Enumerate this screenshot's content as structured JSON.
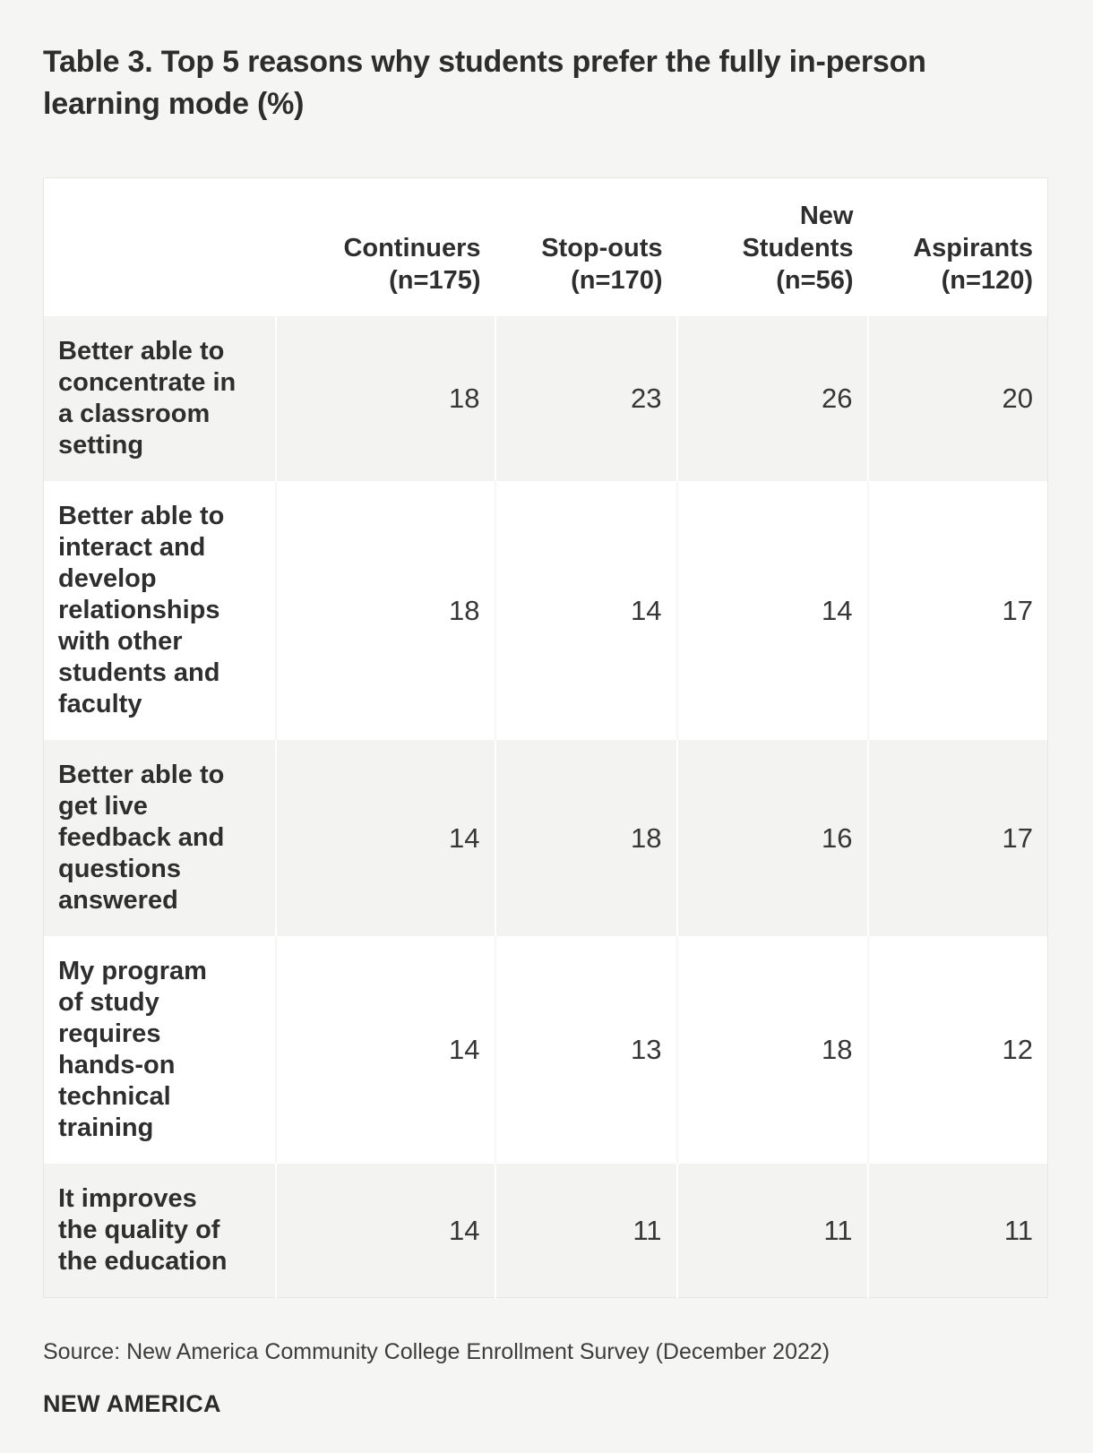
{
  "title": "Table 3. Top 5 reasons why students prefer the fully in-person\nlearning mode (%)",
  "table": {
    "corner_label": "",
    "columns": [
      {
        "label": "Continuers\n(n=175)"
      },
      {
        "label": "Stop-outs\n(n=170)"
      },
      {
        "label": "New\nStudents\n(n=56)"
      },
      {
        "label": "Aspirants\n(n=120)"
      }
    ],
    "rows": [
      {
        "label": "Better able to\nconcentrate in\na classroom\nsetting",
        "values": [
          "18",
          "23",
          "26",
          "20"
        ]
      },
      {
        "label": "Better able to\ninteract and\ndevelop\nrelationships\nwith other\nstudents and\nfaculty",
        "values": [
          "18",
          "14",
          "14",
          "17"
        ]
      },
      {
        "label": "Better able to\nget live\nfeedback and\nquestions\nanswered",
        "values": [
          "14",
          "18",
          "16",
          "17"
        ]
      },
      {
        "label": "My program\nof study\nrequires\nhands-on\ntechnical\ntraining",
        "values": [
          "14",
          "13",
          "18",
          "12"
        ]
      },
      {
        "label": "It improves\nthe quality of\nthe education",
        "values": [
          "14",
          "11",
          "11",
          "11"
        ]
      }
    ]
  },
  "source": "Source: New America Community College Enrollment Survey (December 2022)",
  "logo": "NEW AMERICA",
  "colors": {
    "page_background": "#f5f5f3",
    "table_background": "#ffffff",
    "alt_row_background": "#f3f3f1",
    "table_border": "#e6e6e3",
    "text": "#2e2e2e"
  },
  "chart_data": {
    "type": "table",
    "title": "Table 3. Top 5 reasons why students prefer the fully in-person learning mode (%)",
    "columns": [
      "Continuers (n=175)",
      "Stop-outs (n=170)",
      "New Students (n=56)",
      "Aspirants (n=120)"
    ],
    "rows": [
      {
        "label": "Better able to concentrate in a classroom setting",
        "values": [
          18,
          23,
          26,
          20
        ]
      },
      {
        "label": "Better able to interact and develop relationships with other students and faculty",
        "values": [
          18,
          14,
          14,
          17
        ]
      },
      {
        "label": "Better able to get live feedback and questions answered",
        "values": [
          14,
          18,
          16,
          17
        ]
      },
      {
        "label": "My program of study requires hands-on technical training",
        "values": [
          14,
          13,
          18,
          12
        ]
      },
      {
        "label": "It improves the quality of the education",
        "values": [
          14,
          11,
          11,
          11
        ]
      }
    ],
    "source": "New America Community College Enrollment Survey (December 2022)"
  }
}
